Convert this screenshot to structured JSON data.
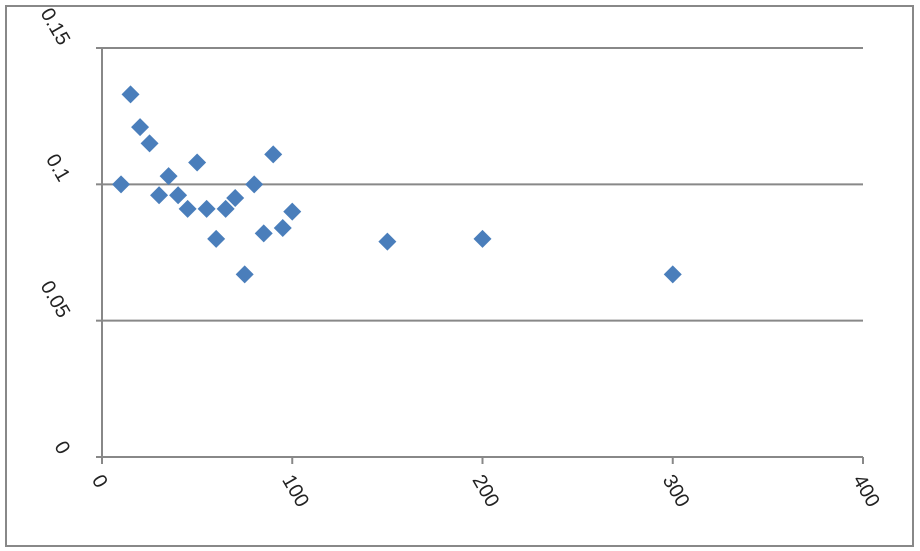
{
  "chart_data": {
    "type": "scatter",
    "series": [
      {
        "color": "#4a7ebb",
        "x": [
          10,
          15,
          20,
          25,
          30,
          35,
          40,
          45,
          50,
          55,
          60,
          65,
          70,
          75,
          80,
          85,
          90,
          95,
          100,
          150,
          200,
          300
        ],
        "values": [
          0.1,
          0.133,
          0.121,
          0.115,
          0.096,
          0.103,
          0.096,
          0.091,
          0.108,
          0.091,
          0.08,
          0.091,
          0.095,
          0.067,
          0.1,
          0.082,
          0.111,
          0.084,
          0.09,
          0.079,
          0.08,
          0.067
        ]
      }
    ],
    "xlim": [
      0,
      400
    ],
    "xticks": [
      0,
      100,
      200,
      300,
      400
    ],
    "ylim": [
      0,
      0.15
    ],
    "yticks": [
      0,
      0.05,
      0.1,
      0.15
    ],
    "grid": true
  }
}
